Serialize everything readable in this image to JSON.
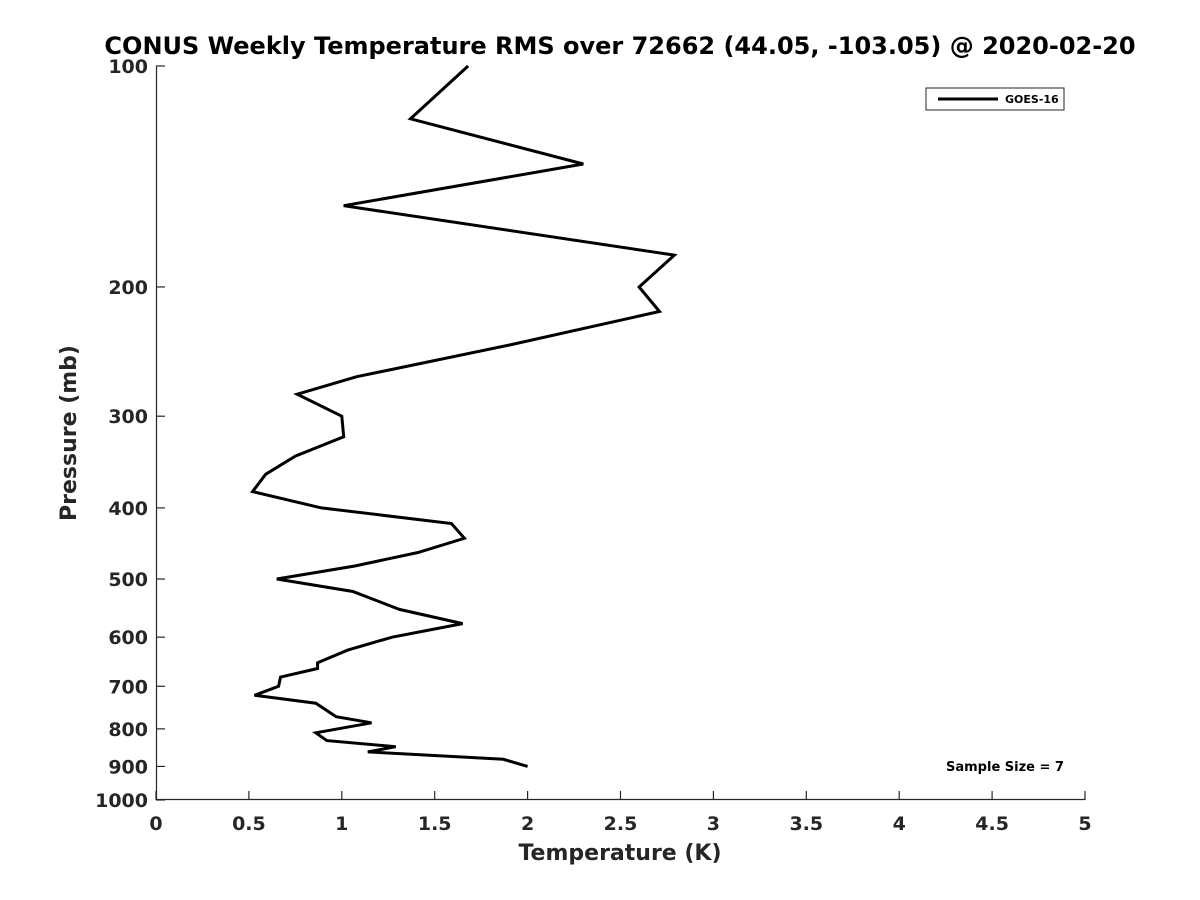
{
  "chart_data": {
    "type": "line",
    "title": "CONUS Weekly Temperature RMS over 72662 (44.05, -103.05) @ 2020-02-20",
    "xlabel": "Temperature (K)",
    "ylabel": "Pressure (mb)",
    "xlim": [
      0,
      5
    ],
    "ylim": [
      100,
      1000
    ],
    "y_scale": "log",
    "y_reversed": true,
    "grid": false,
    "legend_placement": "top-right",
    "x_ticks": [
      0,
      0.5,
      1,
      1.5,
      2,
      2.5,
      3,
      3.5,
      4,
      4.5,
      5
    ],
    "x_tick_labels": [
      "0",
      "0.5",
      "1",
      "1.5",
      "2",
      "2.5",
      "3",
      "3.5",
      "4",
      "4.5",
      "5"
    ],
    "y_ticks": [
      100,
      200,
      300,
      400,
      500,
      600,
      700,
      800,
      900,
      1000
    ],
    "y_tick_labels": [
      "100",
      "200",
      "300",
      "400",
      "500",
      "600",
      "700",
      "800",
      "900",
      "1000"
    ],
    "series": [
      {
        "name": "GOES-16",
        "color": "#000000",
        "points": [
          {
            "x": 1.68,
            "y": 100
          },
          {
            "x": 1.37,
            "y": 118
          },
          {
            "x": 2.3,
            "y": 136
          },
          {
            "x": 1.01,
            "y": 155
          },
          {
            "x": 2.79,
            "y": 181
          },
          {
            "x": 2.6,
            "y": 200
          },
          {
            "x": 2.71,
            "y": 216
          },
          {
            "x": 1.9,
            "y": 240
          },
          {
            "x": 1.08,
            "y": 265
          },
          {
            "x": 0.76,
            "y": 280
          },
          {
            "x": 1.0,
            "y": 300
          },
          {
            "x": 1.01,
            "y": 320
          },
          {
            "x": 0.75,
            "y": 340
          },
          {
            "x": 0.59,
            "y": 360
          },
          {
            "x": 0.52,
            "y": 380
          },
          {
            "x": 0.89,
            "y": 400
          },
          {
            "x": 1.59,
            "y": 420
          },
          {
            "x": 1.66,
            "y": 440
          },
          {
            "x": 1.41,
            "y": 460
          },
          {
            "x": 1.07,
            "y": 480
          },
          {
            "x": 0.65,
            "y": 500
          },
          {
            "x": 1.06,
            "y": 520
          },
          {
            "x": 1.31,
            "y": 550
          },
          {
            "x": 1.65,
            "y": 575
          },
          {
            "x": 1.27,
            "y": 600
          },
          {
            "x": 1.03,
            "y": 625
          },
          {
            "x": 0.87,
            "y": 650
          },
          {
            "x": 0.87,
            "y": 662
          },
          {
            "x": 0.67,
            "y": 680
          },
          {
            "x": 0.66,
            "y": 700
          },
          {
            "x": 0.53,
            "y": 720
          },
          {
            "x": 0.86,
            "y": 738
          },
          {
            "x": 0.97,
            "y": 770
          },
          {
            "x": 1.16,
            "y": 785
          },
          {
            "x": 0.86,
            "y": 810
          },
          {
            "x": 0.92,
            "y": 830
          },
          {
            "x": 1.29,
            "y": 846
          },
          {
            "x": 1.14,
            "y": 860
          },
          {
            "x": 1.87,
            "y": 880
          },
          {
            "x": 2.0,
            "y": 900
          }
        ]
      }
    ],
    "annotations": [
      {
        "text": "Sample Size = 7"
      }
    ]
  }
}
